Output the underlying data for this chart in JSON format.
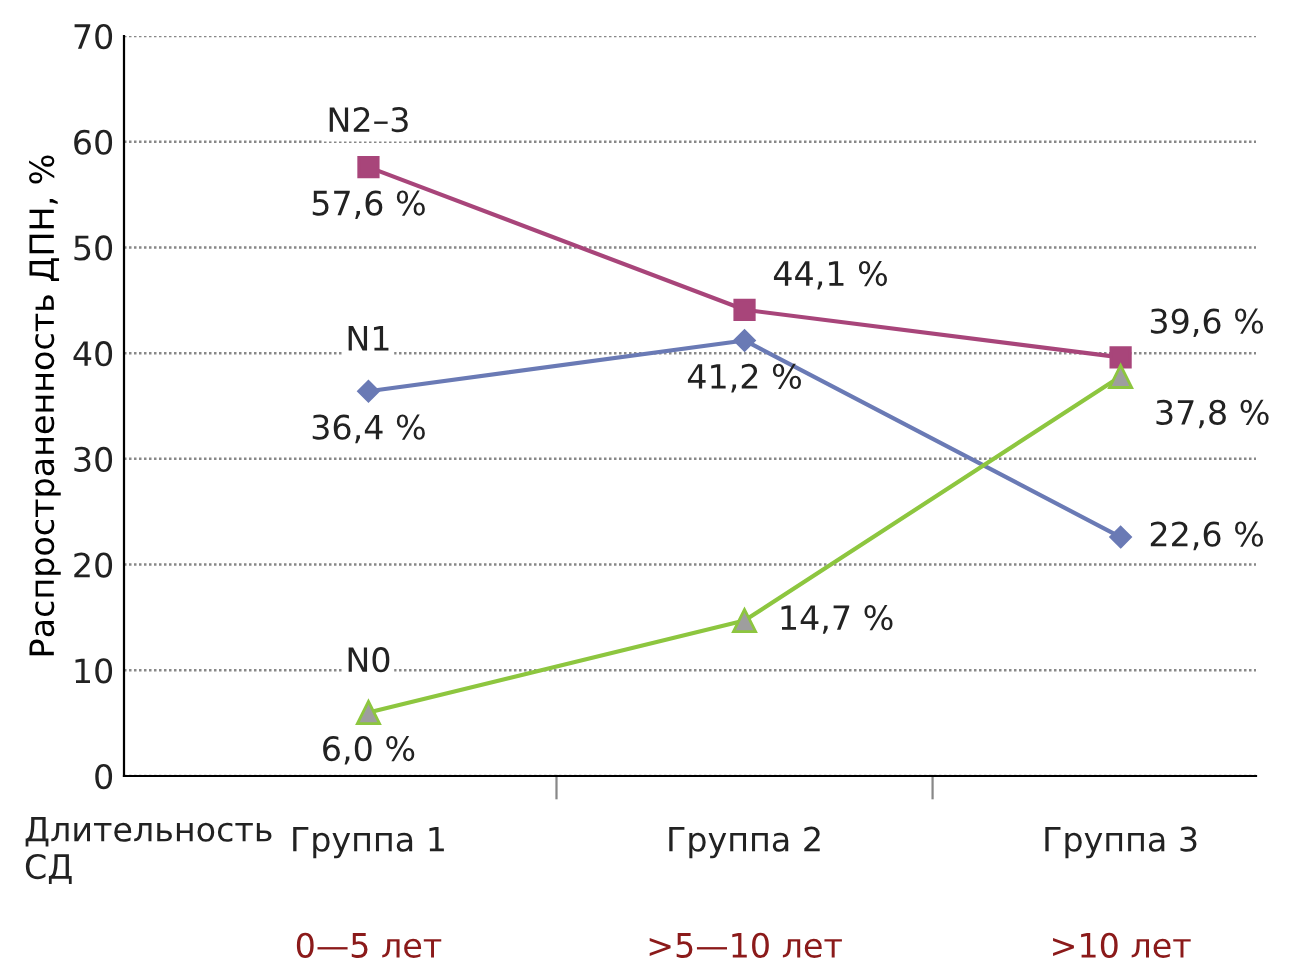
{
  "chart_data": {
    "type": "line",
    "ylabel": "Распространенность ДПН, %",
    "xlabel": "Длительность\nСД",
    "categories": [
      "Группа 1",
      "Группа 2",
      "Группа 3"
    ],
    "series": [
      {
        "name": "N2–3",
        "color": "#a8457a",
        "marker": "square",
        "values": [
          57.6,
          44.1,
          39.6
        ],
        "value_labels": [
          "57,6 %",
          "44,1 %",
          "39,6 %"
        ]
      },
      {
        "name": "N1",
        "color": "#6a7ab5",
        "marker": "diamond",
        "values": [
          36.4,
          41.2,
          22.6
        ],
        "value_labels": [
          "36,4 %",
          "41,2 %",
          "22,6 %"
        ]
      },
      {
        "name": "N0",
        "color": "#8dc63f",
        "marker": "triangle",
        "values": [
          6.0,
          14.7,
          37.8
        ],
        "value_labels": [
          "6,0 %",
          "14,7 %",
          "37,8 %"
        ]
      }
    ],
    "annotations": [
      "0—5 лет",
      ">5—10 лет",
      ">10 лет"
    ],
    "ylim": [
      0,
      70
    ],
    "yticks": [
      0,
      10,
      20,
      30,
      40,
      50,
      60,
      70
    ],
    "grid": "y",
    "legend": false,
    "line_style": "solid"
  }
}
